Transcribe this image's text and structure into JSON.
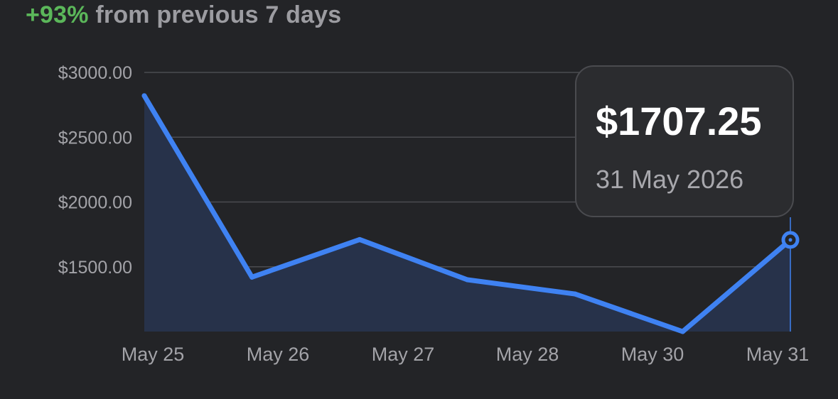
{
  "header": {
    "change": "+93%",
    "text": "from previous 7 days",
    "change_color": "#5bb75a"
  },
  "tooltip": {
    "value": "$1707.25",
    "date": "31 May 2026"
  },
  "colors": {
    "line": "#3f82f2",
    "area": "#27324a",
    "grid": "#4b4c50",
    "background": "#232427"
  },
  "chart_data": {
    "type": "area",
    "x": [
      "May 25",
      "May 26",
      "May 27",
      "May 28",
      "May 30",
      "May 31"
    ],
    "y_tick_labels": [
      "$3000.00",
      "$2500.00",
      "$2000.00",
      "$1500.00"
    ],
    "y_ticks": [
      3000,
      2500,
      2000,
      1500
    ],
    "ylim": [
      1000,
      3000
    ],
    "grid": true,
    "points": [
      {
        "x": 0,
        "y": 2820
      },
      {
        "x": 0.85,
        "y": 1420
      },
      {
        "x": 1.7,
        "y": 1710
      },
      {
        "x": 2.55,
        "y": 1400
      },
      {
        "x": 3.4,
        "y": 1290
      },
      {
        "x": 4.25,
        "y": 1000
      },
      {
        "x": 5.1,
        "y": 1707.25
      }
    ],
    "highlight_index": 6
  }
}
